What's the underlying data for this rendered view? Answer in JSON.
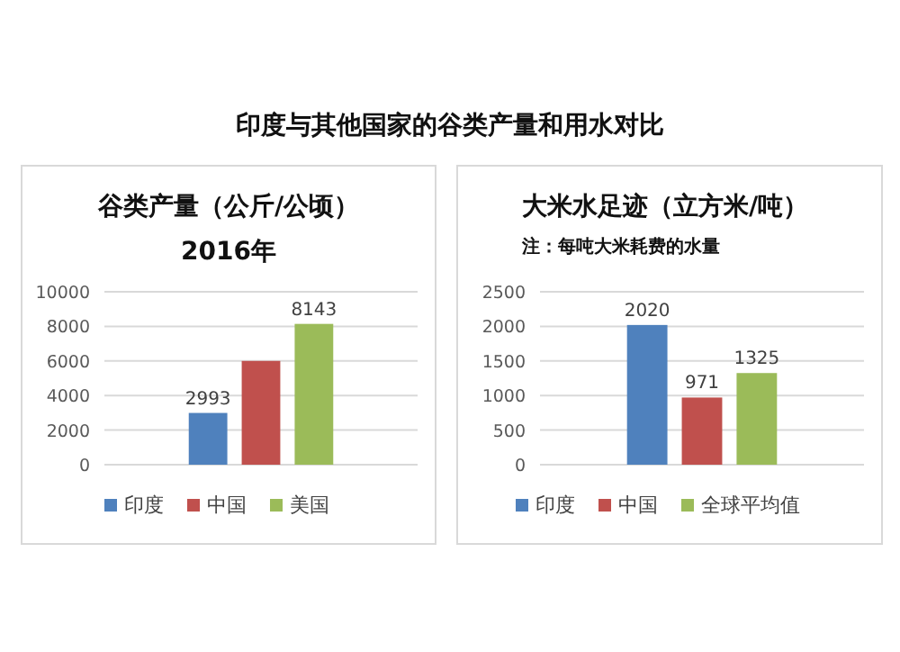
{
  "chart_data": [
    {
      "type": "bar",
      "title": "谷类产量（公斤/公顷）",
      "subtitle": "2016年",
      "annotations": [
        "印度与其他国家的谷类产量和用水对比"
      ],
      "categories": [
        null
      ],
      "series": [
        {
          "name": "印度",
          "color": "#4f81bd",
          "values": [
            2993
          ],
          "value_labels": [
            "2993"
          ]
        },
        {
          "name": "中国",
          "color": "#c0504d",
          "values": [
            6000
          ],
          "value_labels": [
            null
          ]
        },
        {
          "name": "美国",
          "color": "#9bbb59",
          "values": [
            8143
          ],
          "value_labels": [
            "8143"
          ]
        }
      ],
      "ylim": [
        0,
        10000
      ],
      "yticks": [
        0,
        2000,
        4000,
        6000,
        8000,
        10000
      ],
      "grid": "y",
      "legend": "bottom"
    },
    {
      "type": "bar",
      "title": "大米水足迹（立方米/吨）",
      "subtitle": "注：每吨大米耗费的水量",
      "categories": [
        null
      ],
      "series": [
        {
          "name": "印度",
          "color": "#4f81bd",
          "values": [
            2020
          ],
          "value_labels": [
            "2020"
          ]
        },
        {
          "name": "中国",
          "color": "#c0504d",
          "values": [
            971
          ],
          "value_labels": [
            "971"
          ]
        },
        {
          "name": "全球平均值",
          "color": "#9bbb59",
          "values": [
            1325
          ],
          "value_labels": [
            "1325"
          ]
        }
      ],
      "ylim": [
        0,
        2500
      ],
      "yticks": [
        0,
        500,
        1000,
        1500,
        2000,
        2500
      ],
      "grid": "y",
      "legend": "bottom"
    }
  ]
}
